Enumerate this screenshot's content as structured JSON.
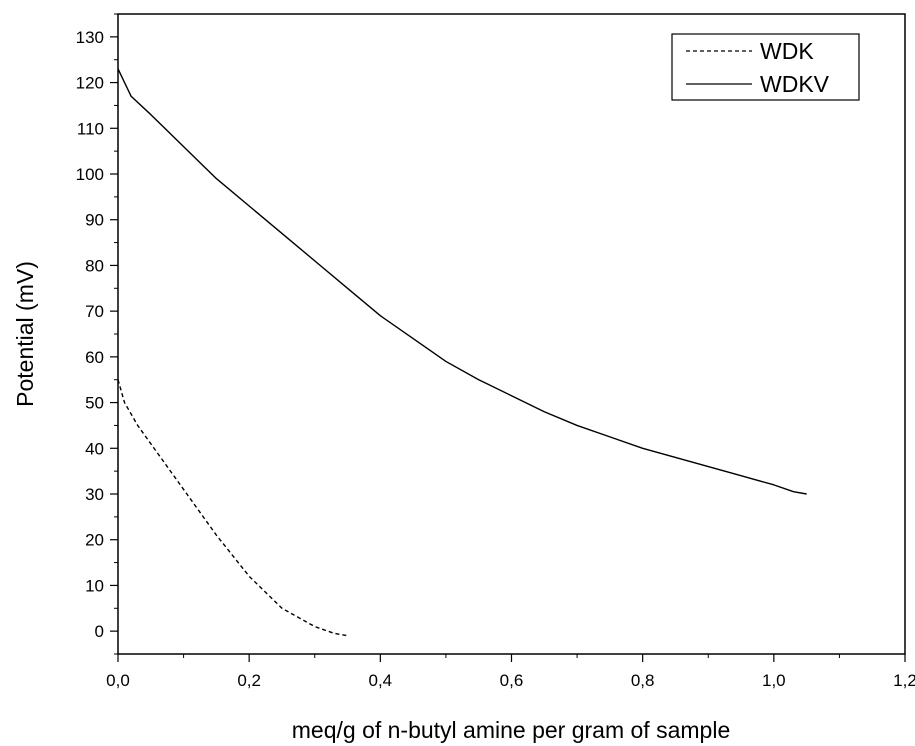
{
  "chart_data": {
    "type": "line",
    "title": "",
    "xlabel": "meq/g of n-butyl amine per gram of sample",
    "ylabel": "Potential (mV)",
    "xlim": [
      0,
      1.2
    ],
    "ylim": [
      -5,
      135
    ],
    "x_ticks": [
      0,
      0.2,
      0.4,
      0.6,
      0.8,
      1.0,
      1.2
    ],
    "x_tick_labels": [
      "0,0",
      "0,2",
      "0,4",
      "0,6",
      "0,8",
      "1,0",
      "1,2"
    ],
    "y_ticks": [
      0,
      10,
      20,
      30,
      40,
      50,
      60,
      70,
      80,
      90,
      100,
      110,
      120,
      130
    ],
    "y_tick_labels": [
      "0",
      "10",
      "20",
      "30",
      "40",
      "50",
      "60",
      "70",
      "80",
      "90",
      "100",
      "110",
      "120",
      "130"
    ],
    "grid": false,
    "legend": "top-right",
    "series": [
      {
        "name": "WDK",
        "style": "dashed",
        "color": "#000000",
        "x": [
          0.0,
          0.01,
          0.03,
          0.06,
          0.1,
          0.15,
          0.2,
          0.25,
          0.3,
          0.33,
          0.35
        ],
        "y": [
          55,
          50,
          45,
          39,
          31,
          21,
          12,
          5,
          1,
          -0.5,
          -1
        ]
      },
      {
        "name": "WDKV",
        "style": "solid",
        "color": "#000000",
        "x": [
          0.0,
          0.01,
          0.02,
          0.05,
          0.1,
          0.15,
          0.2,
          0.25,
          0.3,
          0.35,
          0.4,
          0.45,
          0.5,
          0.55,
          0.6,
          0.65,
          0.7,
          0.75,
          0.8,
          0.85,
          0.9,
          0.95,
          1.0,
          1.03,
          1.05
        ],
        "y": [
          123,
          120,
          117,
          113,
          106,
          99,
          93,
          87,
          81,
          75,
          69,
          64,
          59,
          55,
          51.5,
          48,
          45,
          42.5,
          40,
          38,
          36,
          34,
          32,
          30.5,
          30
        ]
      }
    ]
  }
}
